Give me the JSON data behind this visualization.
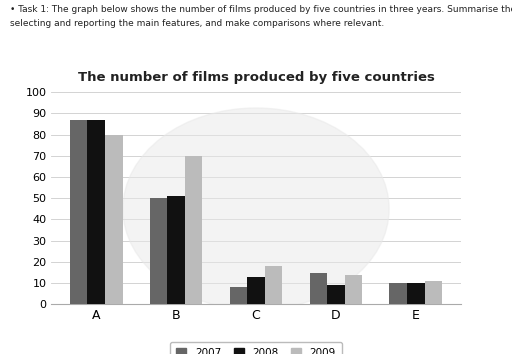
{
  "title": "The number of films produced by five countries",
  "categories": [
    "A",
    "B",
    "C",
    "D",
    "E"
  ],
  "years": [
    "2007",
    "2008",
    "2009"
  ],
  "values": {
    "2007": [
      87,
      50,
      8,
      15,
      10
    ],
    "2008": [
      87,
      51,
      13,
      9,
      10
    ],
    "2009": [
      80,
      70,
      18,
      14,
      11
    ]
  },
  "colors": {
    "2007": "#666666",
    "2008": "#111111",
    "2009": "#bbbbbb"
  },
  "ylim": [
    0,
    100
  ],
  "yticks": [
    0,
    10,
    20,
    30,
    40,
    50,
    60,
    70,
    80,
    90,
    100
  ],
  "background_color": "#ffffff",
  "task_line1": "• Task 1: The graph below shows the number of films produced by five countries in three years. Summarise the information by",
  "task_line2": "selecting and reporting the main features, and make comparisons where relevant."
}
